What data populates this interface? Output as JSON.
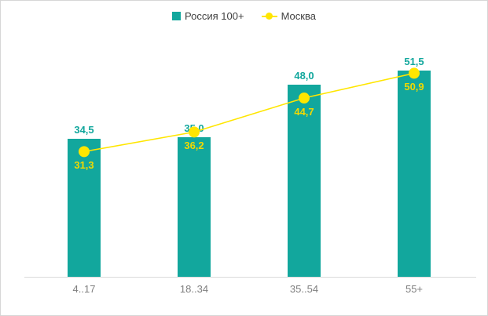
{
  "legend": {
    "series1_label": "Россия 100+",
    "series2_label": "Москва"
  },
  "colors": {
    "bar": "#12a79d",
    "bar_label": "#12a79d",
    "line": "#ffe600",
    "line_label": "#f2d900",
    "axis_text": "#7f7f7f",
    "axis_line": "#d9d9d9",
    "border": "#d6d6d6"
  },
  "chart_data": {
    "type": "bar+line",
    "title": "",
    "categories": [
      "4..17",
      "18..34",
      "35..54",
      "55+"
    ],
    "series": [
      {
        "name": "Россия 100+",
        "render": "bar",
        "values": [
          34.5,
          35.0,
          48.0,
          51.5
        ],
        "labels": [
          "34,5",
          "35,0",
          "48,0",
          "51,5"
        ],
        "color": "#12a79d"
      },
      {
        "name": "Москва",
        "render": "line",
        "values": [
          31.3,
          36.2,
          44.7,
          50.9
        ],
        "labels": [
          "31,3",
          "36,2",
          "44,7",
          "50,9"
        ],
        "color": "#ffe600"
      }
    ],
    "ylim": [
      0,
      60
    ],
    "grid": false,
    "legend_position": "top",
    "xlabel": "",
    "ylabel": ""
  }
}
